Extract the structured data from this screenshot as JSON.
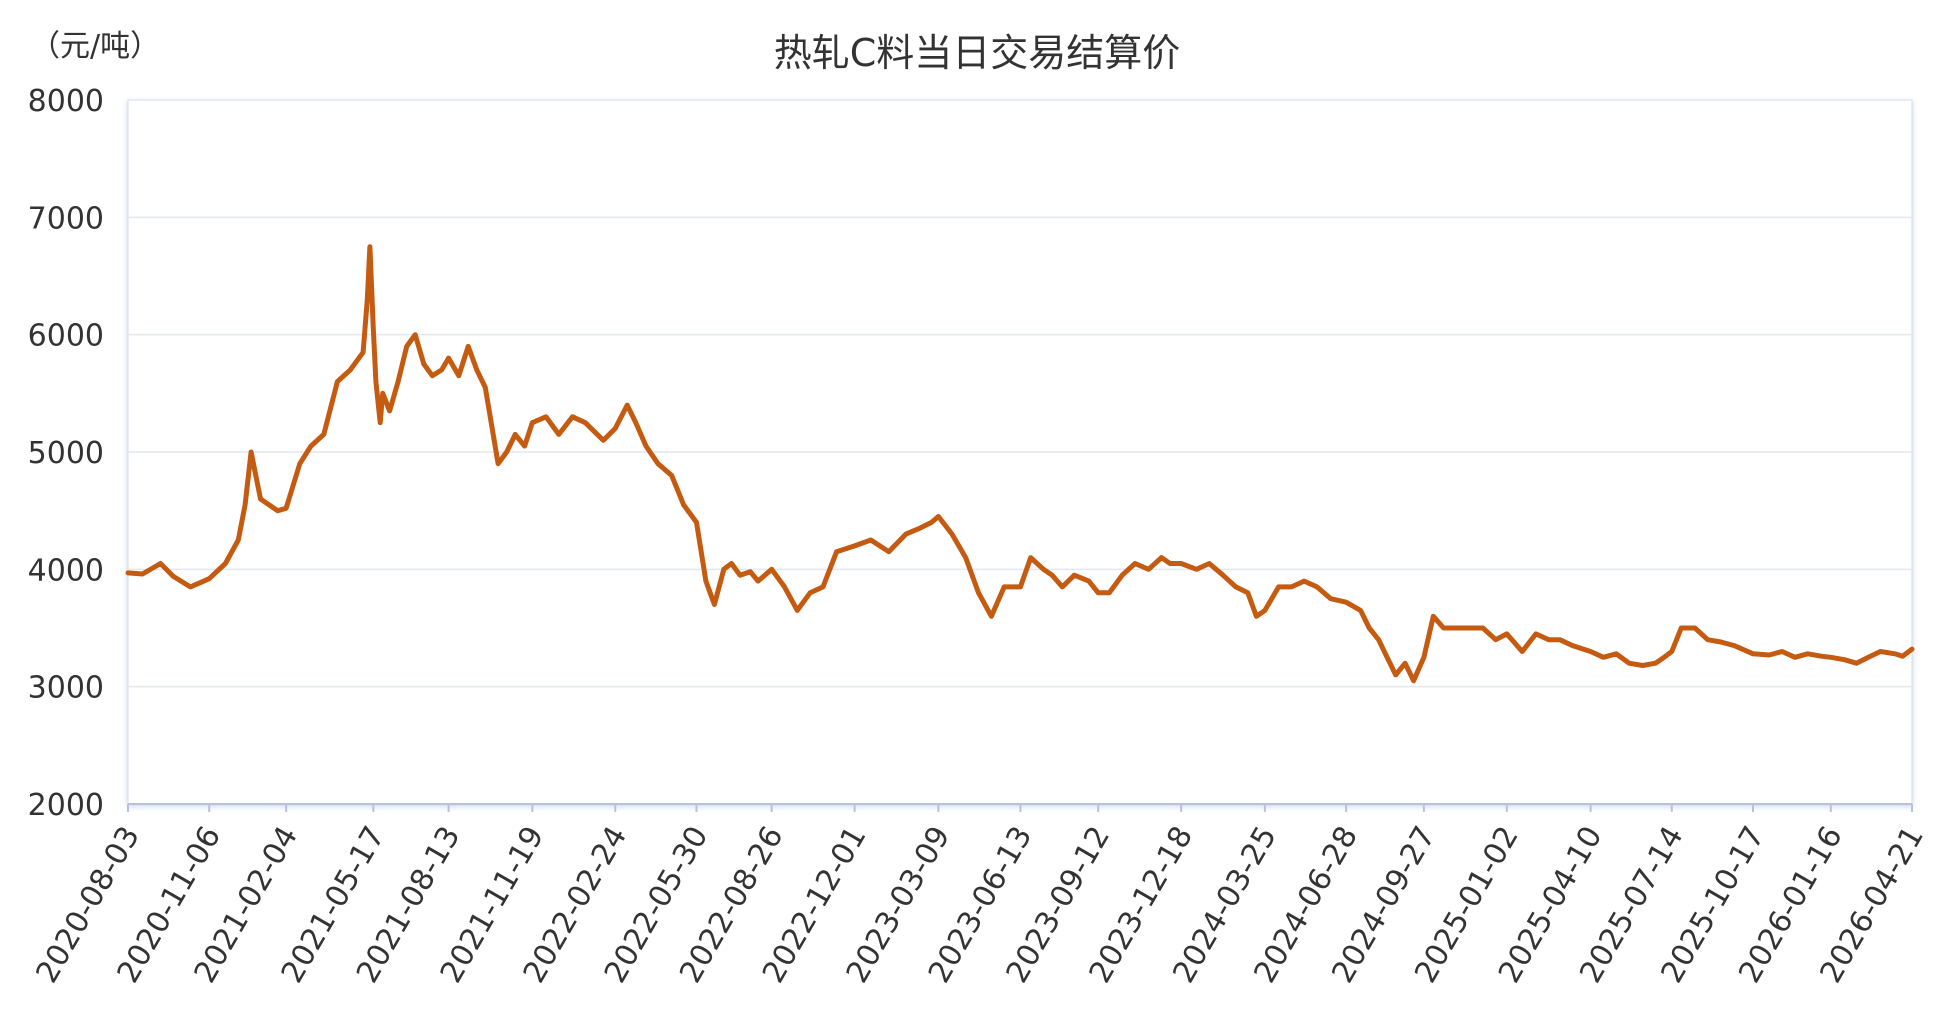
{
  "chart_data": {
    "type": "line",
    "title": "热轧C料当日交易结算价",
    "y_unit": "（元/吨）",
    "ylim": [
      2000,
      8000
    ],
    "yticks": [
      2000,
      3000,
      4000,
      5000,
      6000,
      7000,
      8000
    ],
    "grid": true,
    "line_color": "#C55A11",
    "x_tick_labels": [
      "2020-08-03",
      "2020-11-06",
      "2021-02-04",
      "2021-05-17",
      "2021-08-13",
      "2021-11-19",
      "2022-02-24",
      "2022-05-30",
      "2022-08-26",
      "2022-12-01",
      "2023-03-09",
      "2023-06-13",
      "2023-09-12",
      "2023-12-18",
      "2024-03-25",
      "2024-06-28",
      "2024-09-27",
      "2025-01-02",
      "2025-04-10",
      "2025-07-14",
      "2025-10-17",
      "2026-01-16",
      "2026-04-21"
    ],
    "series": [
      {
        "x": [
          "2020-08-03",
          "2020-08-20",
          "2020-09-10",
          "2020-09-25",
          "2020-10-15",
          "2020-11-06",
          "2020-11-25",
          "2020-12-10",
          "2020-12-18",
          "2020-12-25",
          "2021-01-05",
          "2021-01-15",
          "2021-01-25",
          "2021-02-04",
          "2021-02-20",
          "2021-03-05",
          "2021-03-20",
          "2021-04-05",
          "2021-04-20",
          "2021-05-05",
          "2021-05-10",
          "2021-05-13",
          "2021-05-17",
          "2021-05-20",
          "2021-05-25",
          "2021-05-28",
          "2021-06-05",
          "2021-06-15",
          "2021-06-25",
          "2021-07-05",
          "2021-07-15",
          "2021-07-25",
          "2021-08-05",
          "2021-08-13",
          "2021-08-25",
          "2021-09-05",
          "2021-09-15",
          "2021-09-25",
          "2021-10-10",
          "2021-10-20",
          "2021-10-30",
          "2021-11-10",
          "2021-11-19",
          "2021-12-05",
          "2021-12-20",
          "2022-01-05",
          "2022-01-20",
          "2022-02-10",
          "2022-02-24",
          "2022-03-10",
          "2022-03-20",
          "2022-04-01",
          "2022-04-15",
          "2022-05-01",
          "2022-05-15",
          "2022-05-30",
          "2022-06-10",
          "2022-06-20",
          "2022-07-01",
          "2022-07-10",
          "2022-07-20",
          "2022-08-01",
          "2022-08-10",
          "2022-08-26",
          "2022-09-10",
          "2022-09-25",
          "2022-10-10",
          "2022-10-25",
          "2022-11-10",
          "2022-12-01",
          "2022-12-20",
          "2023-01-10",
          "2023-01-30",
          "2023-02-15",
          "2023-03-01",
          "2023-03-09",
          "2023-03-25",
          "2023-04-10",
          "2023-04-25",
          "2023-05-10",
          "2023-05-25",
          "2023-06-13",
          "2023-06-25",
          "2023-07-10",
          "2023-07-20",
          "2023-08-01",
          "2023-08-15",
          "2023-09-01",
          "2023-09-12",
          "2023-09-25",
          "2023-10-10",
          "2023-10-25",
          "2023-11-10",
          "2023-11-25",
          "2023-12-05",
          "2023-12-18",
          "2024-01-05",
          "2024-01-20",
          "2024-02-05",
          "2024-02-20",
          "2024-03-05",
          "2024-03-15",
          "2024-03-25",
          "2024-04-10",
          "2024-04-25",
          "2024-05-10",
          "2024-05-25",
          "2024-06-10",
          "2024-06-28",
          "2024-07-15",
          "2024-07-25",
          "2024-08-05",
          "2024-08-15",
          "2024-08-25",
          "2024-09-05",
          "2024-09-15",
          "2024-09-27",
          "2024-10-08",
          "2024-10-20",
          "2024-11-05",
          "2024-11-20",
          "2024-12-05",
          "2024-12-20",
          "2025-01-02",
          "2025-01-20",
          "2025-02-05",
          "2025-02-20",
          "2025-03-05",
          "2025-03-20",
          "2025-04-10",
          "2025-04-25",
          "2025-05-10",
          "2025-05-25",
          "2025-06-10",
          "2025-06-25",
          "2025-07-05",
          "2025-07-14",
          "2025-07-25",
          "2025-08-10",
          "2025-08-25",
          "2025-09-10",
          "2025-09-25",
          "2025-10-17",
          "2025-11-05",
          "2025-11-20",
          "2025-12-05",
          "2025-12-20",
          "2026-01-05",
          "2026-01-16",
          "2026-02-01",
          "2026-02-15",
          "2026-03-01",
          "2026-03-15",
          "2026-04-01",
          "2026-04-10",
          "2026-04-21"
        ],
        "values": [
          3970,
          3960,
          4050,
          3940,
          3850,
          3920,
          4050,
          4250,
          4550,
          5000,
          4600,
          4550,
          4500,
          4520,
          4900,
          5050,
          5150,
          5600,
          5700,
          5850,
          6300,
          6750,
          6050,
          5600,
          5250,
          5500,
          5350,
          5600,
          5900,
          6000,
          5750,
          5650,
          5700,
          5800,
          5650,
          5900,
          5700,
          5550,
          4900,
          5000,
          5150,
          5050,
          5250,
          5300,
          5150,
          5300,
          5250,
          5100,
          5200,
          5400,
          5250,
          5050,
          4900,
          4800,
          4550,
          4400,
          3900,
          3700,
          4000,
          4050,
          3950,
          3980,
          3900,
          4000,
          3850,
          3650,
          3800,
          3850,
          4150,
          4200,
          4250,
          4150,
          4300,
          4350,
          4400,
          4450,
          4300,
          4100,
          3800,
          3600,
          3850,
          3850,
          4100,
          4000,
          3950,
          3850,
          3950,
          3900,
          3800,
          3800,
          3950,
          4050,
          4000,
          4100,
          4050,
          4050,
          4000,
          4050,
          3950,
          3850,
          3800,
          3600,
          3650,
          3850,
          3850,
          3900,
          3850,
          3750,
          3720,
          3650,
          3500,
          3400,
          3250,
          3100,
          3200,
          3050,
          3250,
          3600,
          3500,
          3500,
          3500,
          3500,
          3400,
          3450,
          3300,
          3450,
          3400,
          3400,
          3350,
          3300,
          3250,
          3280,
          3200,
          3180,
          3200,
          3250,
          3300,
          3500,
          3500,
          3400,
          3380,
          3350,
          3280,
          3270,
          3300,
          3250,
          3280,
          3260,
          3250,
          3230,
          3200,
          3250,
          3300,
          3280,
          3260,
          3320
        ]
      }
    ]
  }
}
